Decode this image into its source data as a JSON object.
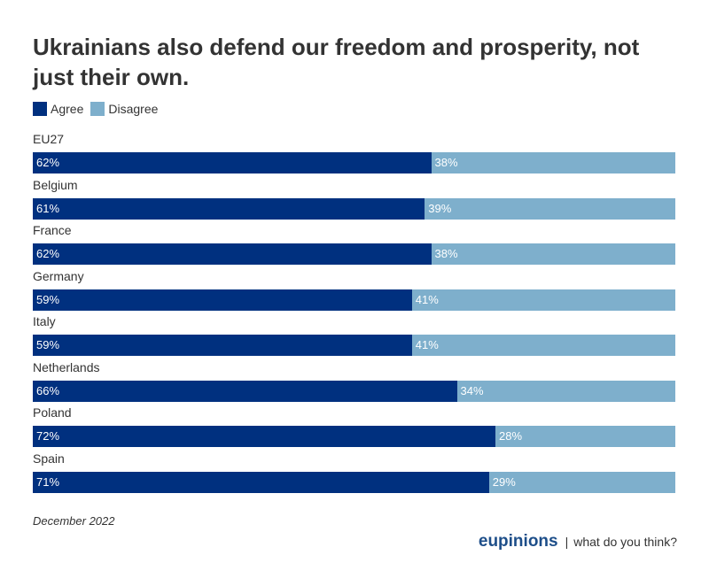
{
  "colors": {
    "agree": "#00307f",
    "disagree": "#7eafcc",
    "brand": "#1d4e89"
  },
  "legend": [
    {
      "label": "Agree",
      "color": "#00307f"
    },
    {
      "label": "Disagree",
      "color": "#7eafcc"
    }
  ],
  "chart_data": {
    "type": "bar",
    "orientation": "horizontal",
    "stacked": true,
    "title": "Ukrainians also defend our freedom and prosperity, not just their own.",
    "categories": [
      "EU27",
      "Belgium",
      "France",
      "Germany",
      "Italy",
      "Netherlands",
      "Poland",
      "Spain"
    ],
    "series": [
      {
        "name": "Agree",
        "values": [
          62,
          61,
          62,
          59,
          59,
          66,
          72,
          71
        ]
      },
      {
        "name": "Disagree",
        "values": [
          38,
          39,
          38,
          41,
          41,
          34,
          28,
          29
        ]
      }
    ],
    "value_suffix": "%",
    "legend_position": "top-left"
  },
  "footnote": "December 2022",
  "brand": {
    "name": "eupinions",
    "separator": "|",
    "tagline": "what do you think?"
  }
}
